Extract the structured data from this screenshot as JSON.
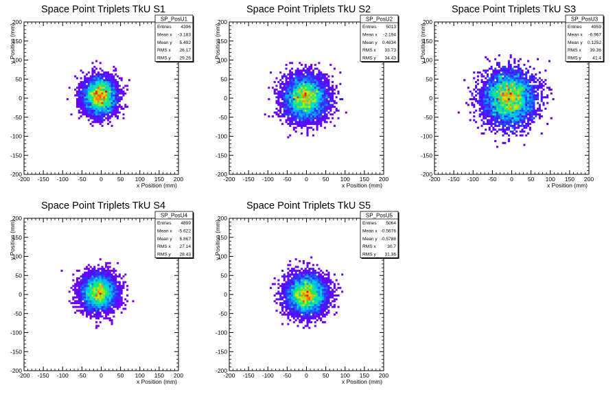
{
  "chart_data": [
    {
      "type": "heatmap",
      "title": "Space Point Triplets TkU S1",
      "xlabel": "x Position (mm)",
      "ylabel": "y Position (mm)",
      "xlim": [
        -200,
        200
      ],
      "ylim": [
        -200,
        200
      ],
      "xticks": [
        -200,
        -150,
        -100,
        -50,
        0,
        50,
        100,
        150,
        200
      ],
      "yticks": [
        -200,
        -150,
        -100,
        -50,
        0,
        50,
        100,
        150,
        200
      ],
      "colormap": "rainbow (violet low to red high)",
      "stats": {
        "name": "SP_PosU1",
        "rows": [
          {
            "label": "Entries",
            "value": "4396"
          },
          {
            "label": "Mean x",
            "value": "-3.183"
          },
          {
            "label": "Mean y",
            "value": "5.492"
          },
          {
            "label": "RMS x",
            "value": "26.17"
          },
          {
            "label": "RMS y",
            "value": "29.26"
          }
        ]
      }
    },
    {
      "type": "heatmap",
      "title": "Space Point Triplets TkU S2",
      "xlabel": "x Position (mm)",
      "ylabel": "y Position (mm)",
      "xlim": [
        -200,
        200
      ],
      "ylim": [
        -200,
        200
      ],
      "xticks": [
        -200,
        -150,
        -100,
        -50,
        0,
        50,
        100,
        150,
        200
      ],
      "yticks": [
        -200,
        -150,
        -100,
        -50,
        0,
        50,
        100,
        150,
        200
      ],
      "colormap": "rainbow (violet low to red high)",
      "stats": {
        "name": "SP_PosU2",
        "rows": [
          {
            "label": "Entries",
            "value": "5013"
          },
          {
            "label": "Mean x",
            "value": "-2.194"
          },
          {
            "label": "Mean y",
            "value": "0.4834"
          },
          {
            "label": "RMS x",
            "value": "33.73"
          },
          {
            "label": "RMS y",
            "value": "34.43"
          }
        ]
      }
    },
    {
      "type": "heatmap",
      "title": "Space Point Triplets TkU S3",
      "xlabel": "x Position (mm)",
      "ylabel": "y Position (mm)",
      "xlim": [
        -200,
        200
      ],
      "ylim": [
        -200,
        200
      ],
      "xticks": [
        -200,
        -150,
        -100,
        -50,
        0,
        50,
        100,
        150,
        200
      ],
      "yticks": [
        -200,
        -150,
        -100,
        -50,
        0,
        50,
        100,
        150,
        200
      ],
      "colormap": "rainbow (violet low to red high)",
      "stats": {
        "name": "SP_PosU3",
        "rows": [
          {
            "label": "Entries",
            "value": "4959"
          },
          {
            "label": "Mean x",
            "value": "-6.967"
          },
          {
            "label": "Mean y",
            "value": "0.1252"
          },
          {
            "label": "RMS x",
            "value": "39.36"
          },
          {
            "label": "RMS y",
            "value": "41.4"
          }
        ]
      }
    },
    {
      "type": "heatmap",
      "title": "Space Point Triplets TkU S4",
      "xlabel": "x Position (mm)",
      "ylabel": "y Position (mm)",
      "xlim": [
        -200,
        200
      ],
      "ylim": [
        -200,
        200
      ],
      "xticks": [
        -200,
        -150,
        -100,
        -50,
        0,
        50,
        100,
        150,
        200
      ],
      "yticks": [
        -200,
        -150,
        -100,
        -50,
        0,
        50,
        100,
        150,
        200
      ],
      "colormap": "rainbow (violet low to red high)",
      "stats": {
        "name": "SP_PosU4",
        "rows": [
          {
            "label": "Entries",
            "value": "4899"
          },
          {
            "label": "Mean x",
            "value": "-5.622"
          },
          {
            "label": "Mean y",
            "value": "5.867"
          },
          {
            "label": "RMS x",
            "value": "27.14"
          },
          {
            "label": "RMS y",
            "value": "28.43"
          }
        ]
      }
    },
    {
      "type": "heatmap",
      "title": "Space Point Triplets TkU S5",
      "xlabel": "x Position (mm)",
      "ylabel": "y Position (mm)",
      "xlim": [
        -200,
        200
      ],
      "ylim": [
        -200,
        200
      ],
      "xticks": [
        -200,
        -150,
        -100,
        -50,
        0,
        50,
        100,
        150,
        200
      ],
      "yticks": [
        -200,
        -150,
        -100,
        -50,
        0,
        50,
        100,
        150,
        200
      ],
      "colormap": "rainbow (violet low to red high)",
      "stats": {
        "name": "SP_PosU5",
        "rows": [
          {
            "label": "Entries",
            "value": "5064"
          },
          {
            "label": "Mean x",
            "value": "-0.5676"
          },
          {
            "label": "Mean y",
            "value": "-0.5788"
          },
          {
            "label": "RMS x",
            "value": "30.7"
          },
          {
            "label": "RMS y",
            "value": "31.36"
          }
        ]
      }
    }
  ]
}
